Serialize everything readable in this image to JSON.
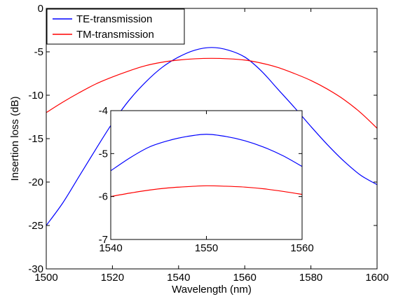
{
  "chart_data": [
    {
      "type": "line",
      "title": "",
      "xlabel": "Wavelength (nm)",
      "ylabel": "Insertion loss (dB)",
      "xlim": [
        1500,
        1600
      ],
      "ylim": [
        -30,
        0
      ],
      "xticks": [
        "1500",
        "1520",
        "1540",
        "1560",
        "1580",
        "1600"
      ],
      "yticks": [
        "-30",
        "-25",
        "-20",
        "-15",
        "-10",
        "-5",
        "0"
      ],
      "grid": false,
      "legend_position": "top-left",
      "series": [
        {
          "name": "TE-transmission",
          "color": "#0000ff",
          "x": [
            1500,
            1505,
            1510,
            1515,
            1520,
            1525,
            1530,
            1535,
            1540,
            1545,
            1550,
            1555,
            1560,
            1565,
            1570,
            1575,
            1580,
            1585,
            1590,
            1595,
            1600
          ],
          "y": [
            -25.0,
            -22.4,
            -19.3,
            -16.2,
            -13.2,
            -10.6,
            -8.5,
            -6.8,
            -5.6,
            -4.8,
            -4.5,
            -4.8,
            -5.6,
            -7.2,
            -9.3,
            -11.4,
            -13.6,
            -15.7,
            -17.6,
            -19.2,
            -20.3
          ]
        },
        {
          "name": "TM-transmission",
          "color": "#ff0000",
          "x": [
            1500,
            1505,
            1510,
            1515,
            1520,
            1525,
            1530,
            1535,
            1540,
            1545,
            1550,
            1555,
            1560,
            1565,
            1570,
            1575,
            1580,
            1585,
            1590,
            1595,
            1600
          ],
          "y": [
            -12.0,
            -10.8,
            -9.7,
            -8.7,
            -7.9,
            -7.2,
            -6.6,
            -6.2,
            -5.95,
            -5.8,
            -5.75,
            -5.8,
            -5.95,
            -6.3,
            -6.8,
            -7.5,
            -8.3,
            -9.3,
            -10.5,
            -12.0,
            -13.8
          ]
        }
      ]
    },
    {
      "type": "line",
      "title": "",
      "xlabel": "",
      "ylabel": "",
      "xlim": [
        1540,
        1560
      ],
      "ylim": [
        -7,
        -4
      ],
      "xticks": [
        "1540",
        "1550",
        "1560"
      ],
      "yticks": [
        "-7",
        "-6",
        "-5",
        "-4"
      ],
      "grid": false,
      "series": [
        {
          "color": "#0000ff",
          "x": [
            1540,
            1542,
            1544,
            1546,
            1548,
            1550,
            1552,
            1554,
            1556,
            1558,
            1560
          ],
          "y": [
            -5.4,
            -5.1,
            -4.85,
            -4.7,
            -4.6,
            -4.55,
            -4.6,
            -4.7,
            -4.85,
            -5.05,
            -5.3
          ]
        },
        {
          "color": "#ff0000",
          "x": [
            1540,
            1542,
            1544,
            1546,
            1548,
            1550,
            1552,
            1554,
            1556,
            1558,
            1560
          ],
          "y": [
            -6.0,
            -5.92,
            -5.85,
            -5.8,
            -5.77,
            -5.75,
            -5.76,
            -5.78,
            -5.82,
            -5.88,
            -5.95
          ]
        }
      ]
    }
  ]
}
